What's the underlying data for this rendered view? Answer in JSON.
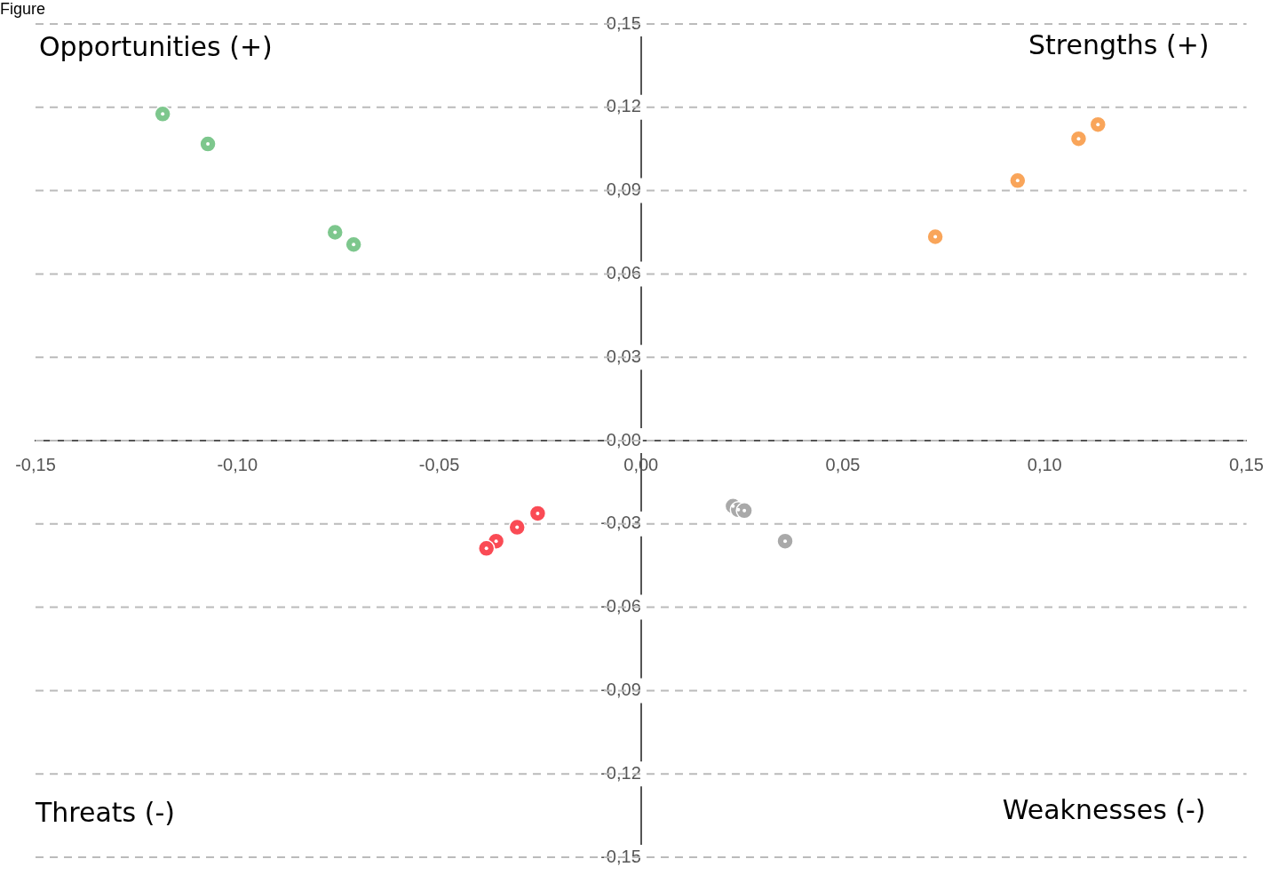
{
  "chart_data": {
    "type": "scatter",
    "annotations": [
      "Figure",
      "Opportunities (+)",
      "Strengths (+)",
      "Threats (-)",
      "Weaknesses (-)"
    ],
    "series": [
      {
        "color": "#7dc78d",
        "x": [
          -0.1185,
          -0.1073,
          -0.0758,
          -0.0712
        ],
        "values": [
          0.1176,
          0.1068,
          0.075,
          0.0706
        ]
      },
      {
        "color": "#f9a55a",
        "x": [
          0.0729,
          0.0933,
          0.1084,
          0.1132
        ],
        "values": [
          0.0734,
          0.0936,
          0.1087,
          0.1138
        ]
      },
      {
        "color": "#fa4b55",
        "x": [
          -0.0256,
          -0.0307,
          -0.0359,
          -0.0383
        ],
        "values": [
          -0.0262,
          -0.0312,
          -0.0362,
          -0.0388
        ]
      },
      {
        "color": "#a9a9a9",
        "x": [
          0.0228,
          0.0241,
          0.0256,
          0.0357
        ],
        "values": [
          -0.0236,
          -0.0249,
          -0.0252,
          -0.0362
        ]
      }
    ],
    "xlim": [
      -0.15,
      0.15
    ],
    "ylim": [
      -0.15,
      0.15
    ],
    "xticks": [
      {
        "value": -0.15,
        "label": "-0,15"
      },
      {
        "value": -0.1,
        "label": "-0,10"
      },
      {
        "value": -0.05,
        "label": "-0,05"
      },
      {
        "value": 0,
        "label": "0,00"
      },
      {
        "value": 0.05,
        "label": "0,05"
      },
      {
        "value": 0.1,
        "label": "0,10"
      },
      {
        "value": 0.15,
        "label": "0,15"
      }
    ],
    "yticks": [
      {
        "value": -0.15,
        "label": "-0,15"
      },
      {
        "value": -0.12,
        "label": "-0,12"
      },
      {
        "value": -0.09,
        "label": "-0,09"
      },
      {
        "value": -0.06,
        "label": "-0,06"
      },
      {
        "value": -0.03,
        "label": "-0,03"
      },
      {
        "value": 0,
        "label": "0,00"
      },
      {
        "value": 0.03,
        "label": "0,03"
      },
      {
        "value": 0.06,
        "label": "0,06"
      },
      {
        "value": 0.09,
        "label": "0,09"
      },
      {
        "value": 0.12,
        "label": "0,12"
      },
      {
        "value": 0.15,
        "label": "0,15"
      }
    ],
    "grid": "y",
    "legend": false,
    "marker": "circle"
  }
}
